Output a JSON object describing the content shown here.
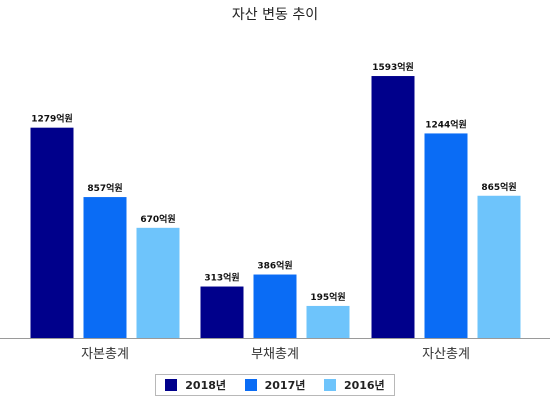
{
  "chart_data": {
    "type": "bar",
    "title": "자산 변동 추이",
    "xlabel": "",
    "ylabel": "",
    "categories": [
      "자본총계",
      "부채총계",
      "자산총계"
    ],
    "unit": "억원",
    "ylim": [
      0,
      1800
    ],
    "grid": false,
    "legend_position": "bottom",
    "series": [
      {
        "name": "2018년",
        "color": "#00008b",
        "values": [
          1279,
          313,
          1593
        ]
      },
      {
        "name": "2017년",
        "color": "#0a6cf5",
        "values": [
          857,
          386,
          1244
        ]
      },
      {
        "name": "2016년",
        "color": "#6ec4fb",
        "values": [
          670,
          195,
          865
        ]
      }
    ]
  }
}
